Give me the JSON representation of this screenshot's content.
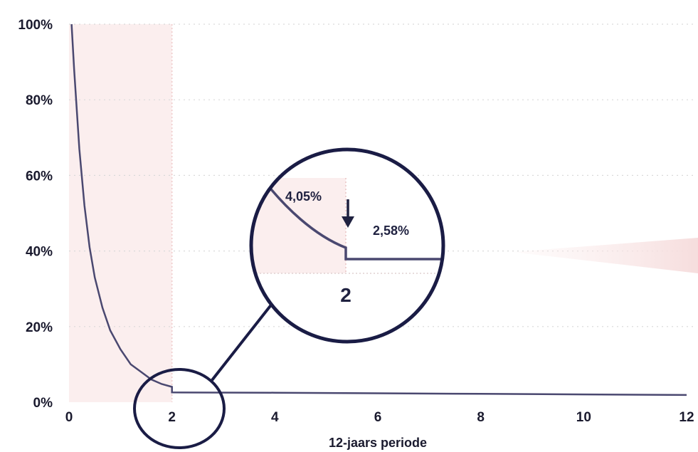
{
  "chart_data": {
    "type": "line",
    "xlabel": "12-jaars periode",
    "ylabel": "",
    "xlim": [
      0,
      12
    ],
    "ylim": [
      0,
      100
    ],
    "x_ticks": [
      0,
      2,
      4,
      6,
      8,
      10,
      12
    ],
    "y_ticks": [
      0,
      20,
      40,
      60,
      80,
      100
    ],
    "x_tick_labels": [
      "0",
      "2",
      "4",
      "6",
      "8",
      "10",
      "12"
    ],
    "y_tick_labels": [
      "0%",
      "20%",
      "40%",
      "60%",
      "80%",
      "100%"
    ],
    "grid": "horizontal-dotted",
    "shaded_region_x": [
      0,
      2
    ],
    "series": [
      {
        "values_shown": "continuous curve",
        "points": [
          {
            "x": 0.05,
            "y": 100
          },
          {
            "x": 0.1,
            "y": 88
          },
          {
            "x": 0.2,
            "y": 67
          },
          {
            "x": 0.3,
            "y": 52
          },
          {
            "x": 0.4,
            "y": 41
          },
          {
            "x": 0.5,
            "y": 33
          },
          {
            "x": 0.65,
            "y": 25
          },
          {
            "x": 0.8,
            "y": 19
          },
          {
            "x": 1.0,
            "y": 14
          },
          {
            "x": 1.2,
            "y": 10
          },
          {
            "x": 1.4,
            "y": 8
          },
          {
            "x": 1.6,
            "y": 6
          },
          {
            "x": 1.8,
            "y": 4.8
          },
          {
            "x": 2.0,
            "y": 4.05
          },
          {
            "x": 2.0,
            "y": 2.58
          },
          {
            "x": 4.0,
            "y": 2.5
          },
          {
            "x": 6.0,
            "y": 2.35
          },
          {
            "x": 8.0,
            "y": 2.2
          },
          {
            "x": 10.0,
            "y": 2.05
          },
          {
            "x": 12.0,
            "y": 1.9
          }
        ]
      }
    ],
    "annotations": {
      "zoom_before": "4,05%",
      "zoom_after": "2,58%",
      "zoom_tick": "2"
    },
    "colors": {
      "line": "#4a4870",
      "line_dark": "#1f2140",
      "shade": "#fbeeee",
      "grid": "#d9d9d9",
      "circle": "#1a1c45"
    }
  }
}
